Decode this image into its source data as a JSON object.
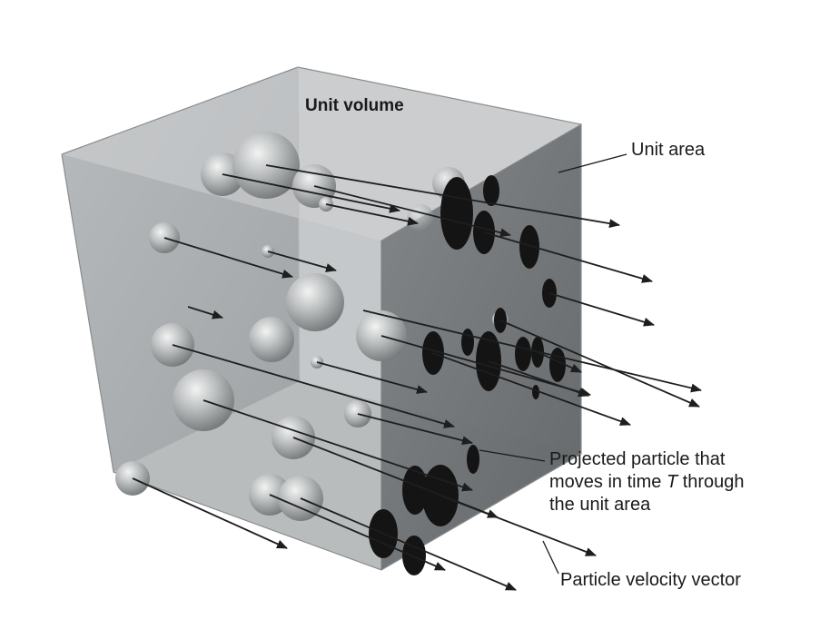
{
  "labels": {
    "unit_volume": "Unit volume",
    "unit_area": "Unit area",
    "projected_particle_line1": "Projected particle that",
    "projected_particle_line2_pre": "moves in time ",
    "projected_particle_line2_var": "T",
    "projected_particle_line2_post": " through",
    "projected_particle_line3": "the unit area",
    "velocity_vector": "Particle velocity vector"
  },
  "colors": {
    "cube_face": "#a9adaf",
    "cube_back": "#c3c6c8",
    "unit_area_face": "#6e7274",
    "shadow_disc": "#141414",
    "arrow": "#1e1e1e"
  }
}
